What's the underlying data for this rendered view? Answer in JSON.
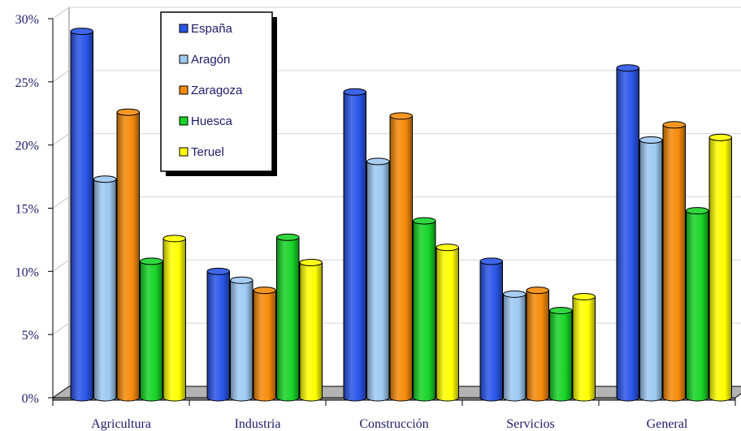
{
  "chart_data": {
    "type": "bar",
    "categories": [
      "Agricultura",
      "Industria",
      "Construcción",
      "Servicios",
      "General"
    ],
    "series": [
      {
        "name": "España",
        "color": "#2a55e8",
        "values": [
          29.0,
          10.0,
          24.2,
          10.8,
          26.1
        ]
      },
      {
        "name": "Aragón",
        "color": "#9ec9f2",
        "values": [
          17.3,
          9.3,
          18.7,
          8.2,
          20.4
        ]
      },
      {
        "name": "Zaragoza",
        "color": "#f58a0a",
        "values": [
          22.6,
          8.5,
          22.3,
          8.5,
          21.6
        ]
      },
      {
        "name": "Huesca",
        "color": "#18d428",
        "values": [
          10.8,
          12.7,
          14.0,
          6.9,
          14.8
        ]
      },
      {
        "name": "Teruel",
        "color": "#ffff00",
        "values": [
          12.6,
          10.7,
          11.9,
          8.0,
          20.6
        ]
      }
    ],
    "ylim": [
      0,
      30
    ],
    "yticks": [
      "0%",
      "5%",
      "10%",
      "15%",
      "20%",
      "25%",
      "30%"
    ],
    "grid": true,
    "legend_position": "top-left"
  }
}
